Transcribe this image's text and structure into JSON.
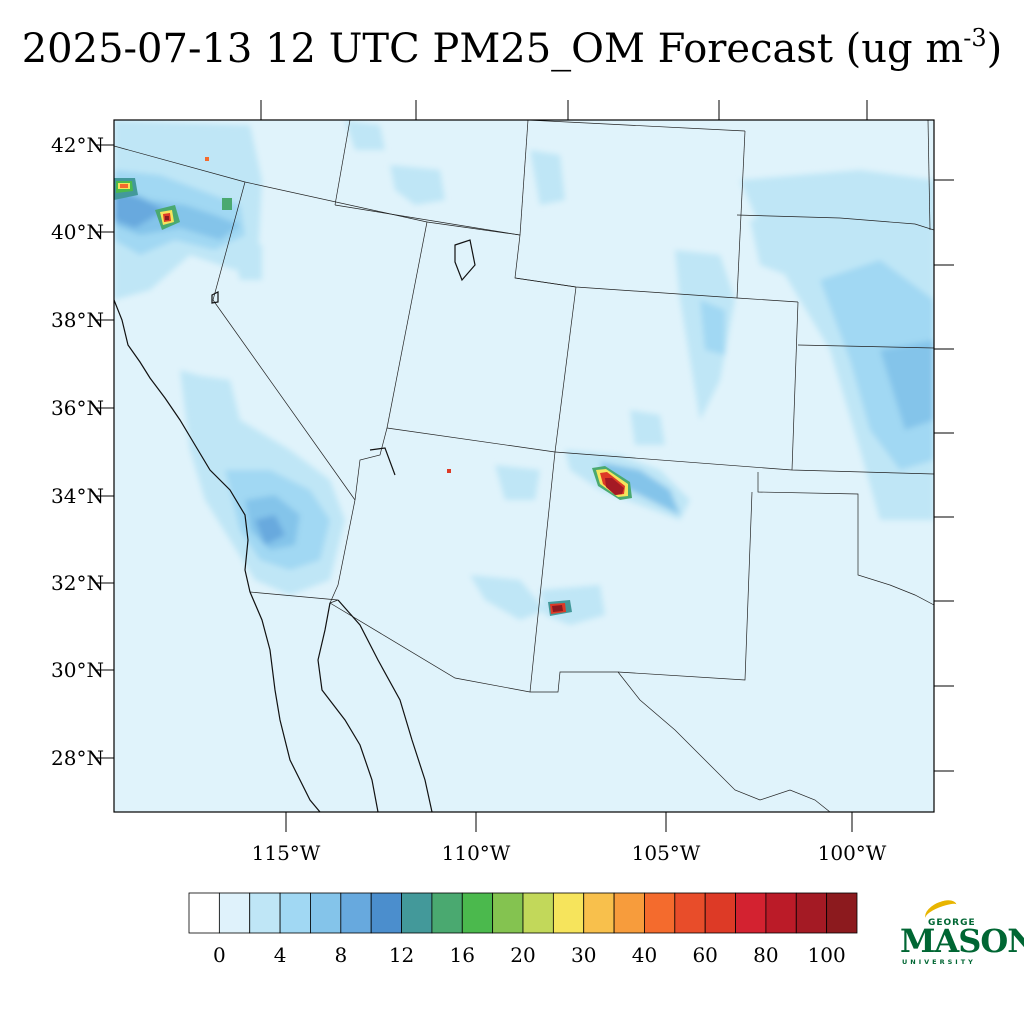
{
  "title": {
    "main": "2025-07-13 12 UTC PM25_OM Forecast (ug m",
    "superscript": "-3",
    "close": ")"
  },
  "map": {
    "variable": "PM25_OM",
    "units": "ug m-3",
    "valid_time": "2025-07-13 12 UTC",
    "lon_range": [
      -119.7,
      -97.9
    ],
    "lat_range": [
      26.8,
      42.6
    ],
    "background_color": "#e0f3fb",
    "lat_labels": [
      "42°N",
      "40°N",
      "38°N",
      "36°N",
      "34°N",
      "32°N",
      "30°N",
      "28°N"
    ],
    "lon_labels": [
      "115°W",
      "110°W",
      "105°W",
      "100°W"
    ],
    "hotspots": [
      {
        "name": "northern-california-fire",
        "lat": 40.3,
        "lon": -118.2,
        "max_bin": "100"
      },
      {
        "name": "northwest-california-fire",
        "lat": 41.1,
        "lon": -119.5,
        "max_bin": "40"
      },
      {
        "name": "new-mexico-north-fire",
        "lat": 34.3,
        "lon": -106.6,
        "max_bin": "100"
      },
      {
        "name": "new-mexico-south-fire",
        "lat": 31.4,
        "lon": -107.8,
        "max_bin": "100"
      },
      {
        "name": "arizona-small-fire",
        "lat": 34.5,
        "lon": -110.7,
        "max_bin": "60"
      }
    ]
  },
  "colorbar": {
    "colors": [
      "#ffffff",
      "#dff2fb",
      "#bfe6f6",
      "#a1d8f3",
      "#84c4ea",
      "#67a9de",
      "#4b8ecd",
      "#43999a",
      "#4aa970",
      "#4bb94d",
      "#84c350",
      "#c2d85a",
      "#f6e45c",
      "#f8c04c",
      "#f79c3c",
      "#f46b2d",
      "#e84d2a",
      "#dd3a26",
      "#d32230",
      "#bb1b28",
      "#a41a24",
      "#8c1a1e"
    ],
    "labels": [
      "0",
      "4",
      "8",
      "12",
      "16",
      "20",
      "30",
      "40",
      "60",
      "80",
      "100"
    ]
  },
  "logo": {
    "line1": "GEORGE",
    "line2": "MASON",
    "line3": "UNIVERSITY",
    "color": "#006633",
    "accent": "#e8b500"
  }
}
